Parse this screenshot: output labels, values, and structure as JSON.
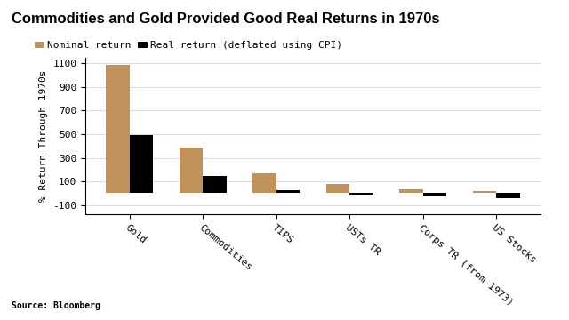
{
  "chart_data": {
    "type": "bar",
    "title": "Commodities and Gold Provided Good Real Returns in 1970s",
    "y_label": "% Return Through 1970s",
    "source": "Source: Bloomberg",
    "categories": [
      "Gold",
      "Commodities",
      "TIPS",
      "USTs TR",
      "Corps TR (from 1973)",
      "US Stocks"
    ],
    "series": [
      {
        "name": "Nominal return",
        "color": "#c0915a",
        "values": [
          1085,
          390,
          165,
          75,
          30,
          20
        ]
      },
      {
        "name": "Real return (deflated using CPI)",
        "color": "#000000",
        "values": [
          490,
          145,
          25,
          -15,
          -30,
          -40
        ]
      }
    ],
    "ylim": [
      -180,
      1150
    ],
    "yticks": [
      -100,
      100,
      300,
      500,
      700,
      900,
      1100
    ],
    "grid": true,
    "legend": "upper left"
  }
}
